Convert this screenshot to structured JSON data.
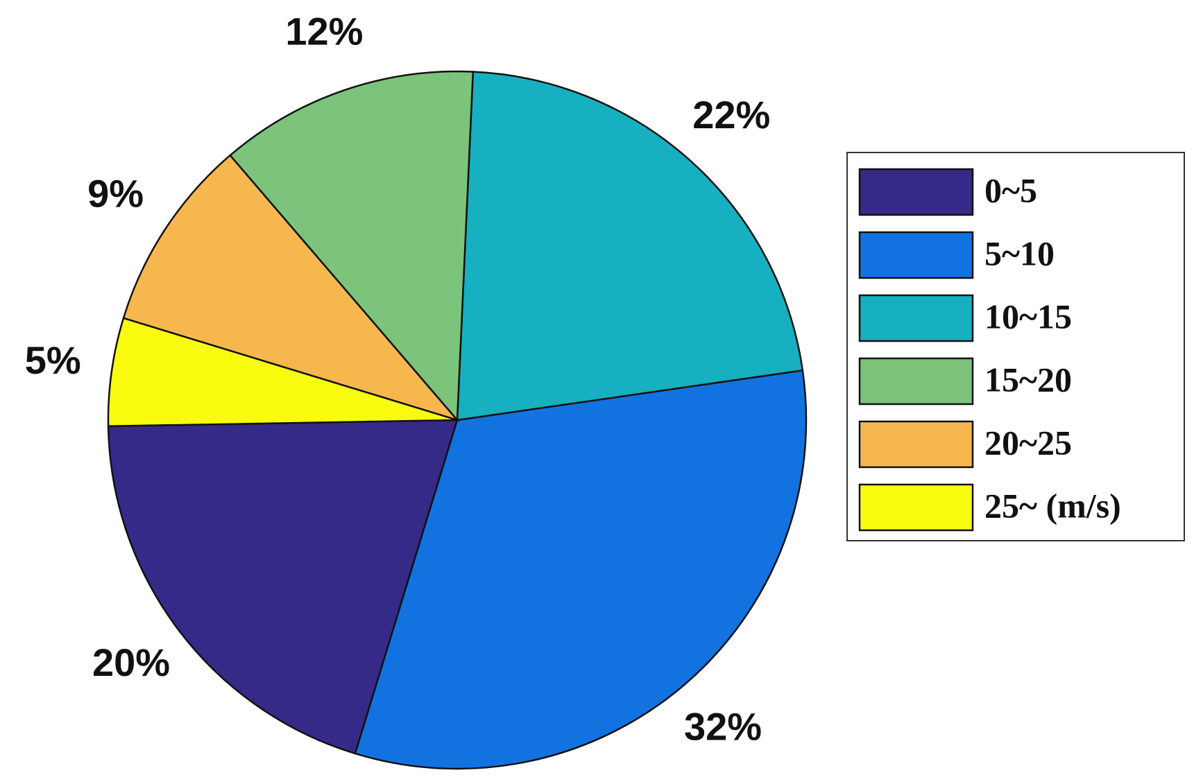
{
  "chart_data": {
    "type": "pie",
    "categories": [
      "0~5",
      "5~10",
      "10~15",
      "15~20",
      "20~25",
      "25~ (m/s)"
    ],
    "values": [
      20,
      32,
      22,
      12,
      9,
      5
    ],
    "value_labels": [
      "20%",
      "32%",
      "22%",
      "12%",
      "9%",
      "5%"
    ],
    "colors": [
      "#352a87",
      "#1273e0",
      "#16b0c0",
      "#7cc37c",
      "#f6b74e",
      "#f9fb0e"
    ],
    "legend": "right"
  }
}
